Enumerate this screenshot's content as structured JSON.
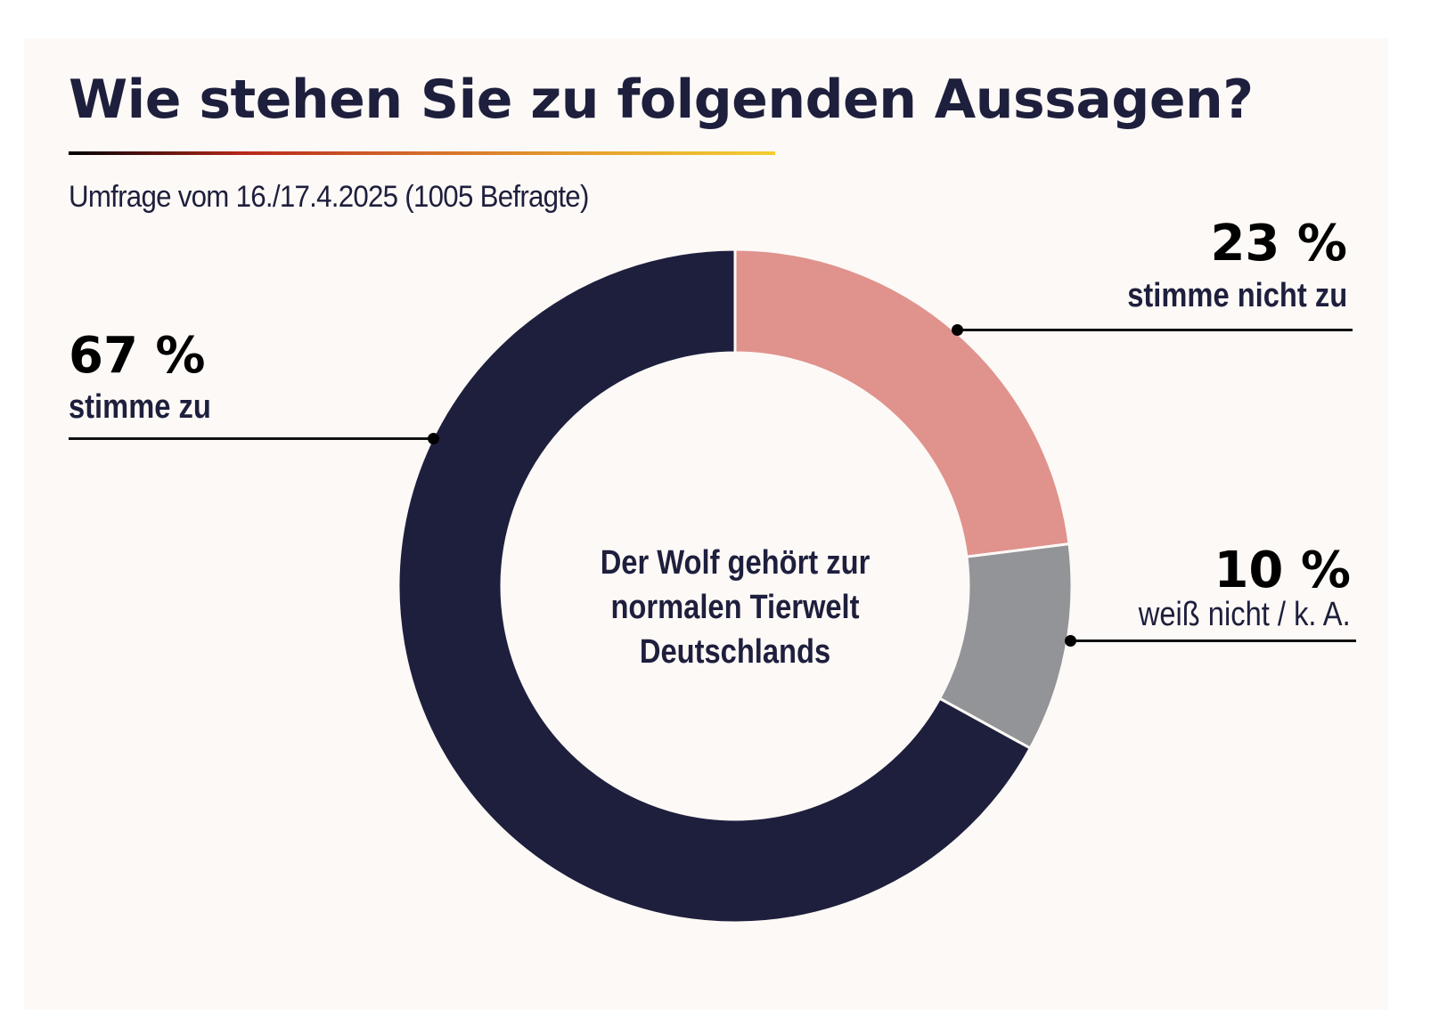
{
  "header": {
    "title": "Wie stehen Sie zu folgenden Aussagen?",
    "subtitle": "Umfrage vom 16./17.4.2025 (1005 Befragte)"
  },
  "colors": {
    "background": "#FDF9F6",
    "text": "#1E1F3D",
    "segment_agree": "#1E1F3D",
    "segment_disagree": "#E0928D",
    "segment_dontknow": "#939497"
  },
  "chart_data": {
    "type": "pie",
    "variant": "donut",
    "title": "Wie stehen Sie zu folgenden Aussagen?",
    "subtitle": "Umfrage vom 16./17.4.2025 (1005 Befragte)",
    "center_label": [
      "Der Wolf gehört zur",
      "normalen Tierwelt",
      "Deutschlands"
    ],
    "start_angle_deg": 0,
    "direction": "clockwise",
    "unit": "%",
    "slices": [
      {
        "label": "stimme nicht zu",
        "value": 23,
        "value_label": "23 %",
        "color": "#E0928D",
        "label_side": "right"
      },
      {
        "label": "weiß nicht / k. A.",
        "value": 10,
        "value_label": "10 %",
        "color": "#939497",
        "label_side": "right"
      },
      {
        "label": "stimme zu",
        "value": 67,
        "value_label": "67 %",
        "color": "#1E1F3D",
        "label_side": "left"
      }
    ]
  }
}
